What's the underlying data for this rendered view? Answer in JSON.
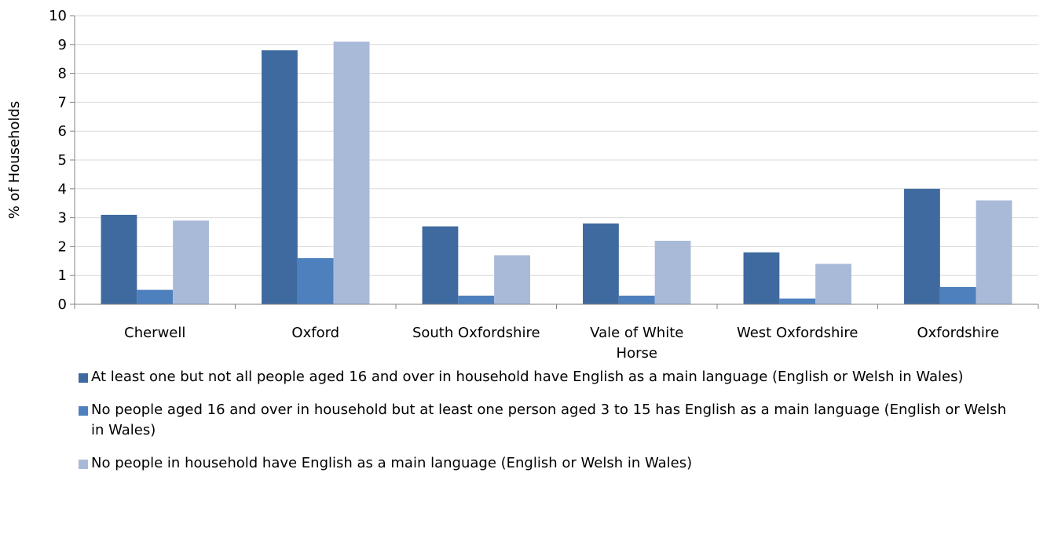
{
  "chart_data": {
    "type": "bar",
    "categories": [
      [
        "Cherwell"
      ],
      [
        "Oxford"
      ],
      [
        "South Oxfordshire"
      ],
      [
        "Vale of White",
        "Horse"
      ],
      [
        "West Oxfordshire"
      ],
      [
        "Oxfordshire"
      ]
    ],
    "series": [
      {
        "name": "At least one but not all people aged 16 and over in household have English as a main language (English or Welsh in Wales)",
        "color": "#3E6A9F",
        "values": [
          3.1,
          8.8,
          2.7,
          2.8,
          1.8,
          4.0
        ]
      },
      {
        "name": "No people aged 16 and over in household but at least one person aged 3 to 15 has English as a main language (English or Welsh in Wales)",
        "color": "#4E80BD",
        "values": [
          0.5,
          1.6,
          0.3,
          0.3,
          0.2,
          0.6
        ]
      },
      {
        "name": "No people in household have English as a main language (English or Welsh in Wales)",
        "color": "#A8BAD8",
        "values": [
          2.9,
          9.1,
          1.7,
          2.2,
          1.4,
          3.6
        ]
      }
    ],
    "ylabel": "% of Households",
    "xlabel": "",
    "ylim": [
      0,
      10
    ],
    "yticks": [
      0,
      1,
      2,
      3,
      4,
      5,
      6,
      7,
      8,
      9,
      10
    ],
    "grid": true,
    "legend": "bottom"
  }
}
